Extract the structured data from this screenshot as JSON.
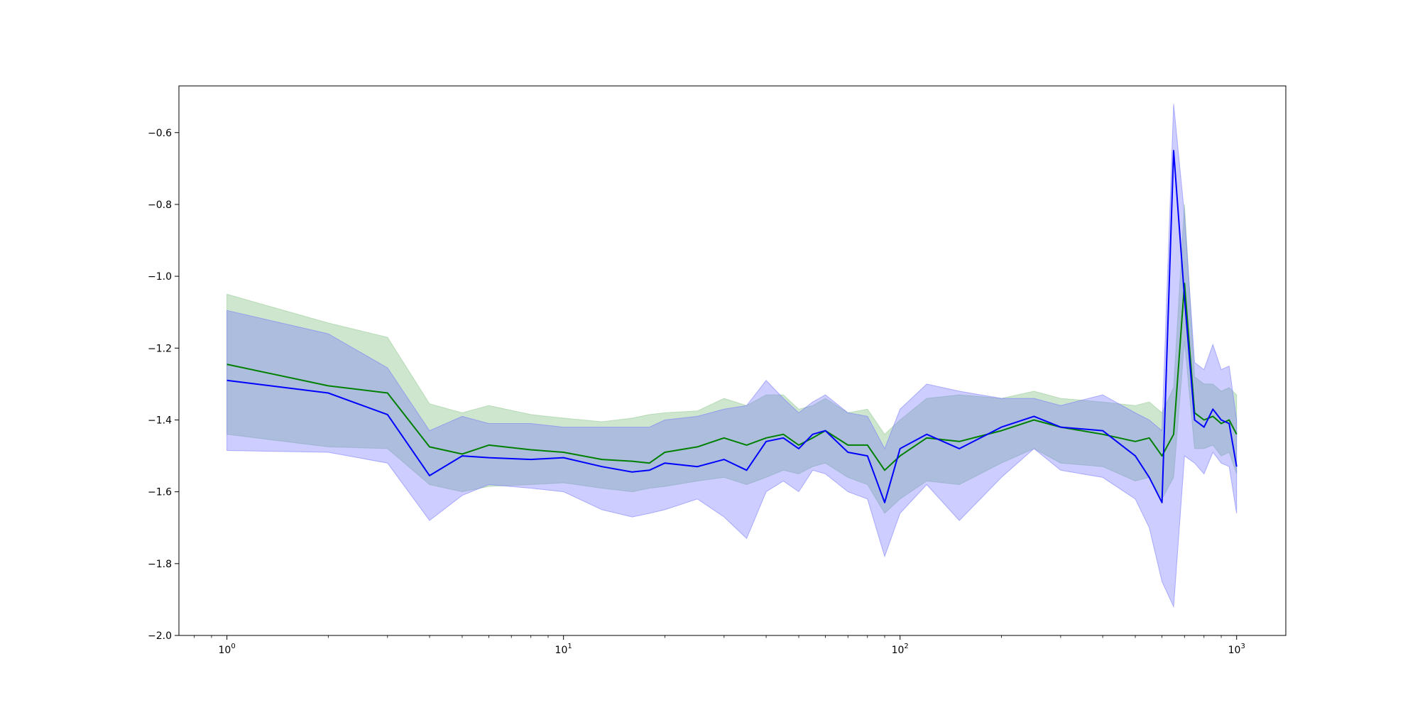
{
  "chart_data": {
    "type": "line",
    "x_scale": "log",
    "xlim": [
      0.72,
      1400
    ],
    "ylim": [
      -2.0,
      -0.47
    ],
    "x_ticks": [
      {
        "value": 1,
        "base": "10",
        "exp": "0"
      },
      {
        "value": 10,
        "base": "10",
        "exp": "1"
      },
      {
        "value": 100,
        "base": "10",
        "exp": "2"
      },
      {
        "value": 1000,
        "base": "10",
        "exp": "3"
      }
    ],
    "y_ticks": [
      {
        "value": -0.6,
        "label": "−0.6"
      },
      {
        "value": -0.8,
        "label": "−0.8"
      },
      {
        "value": -1.0,
        "label": "−1.0"
      },
      {
        "value": -1.2,
        "label": "−1.2"
      },
      {
        "value": -1.4,
        "label": "−1.4"
      },
      {
        "value": -1.6,
        "label": "−1.6"
      },
      {
        "value": -1.8,
        "label": "−1.8"
      },
      {
        "value": -2.0,
        "label": "−2.0"
      }
    ],
    "grid": false,
    "x": [
      1,
      2,
      3,
      4,
      5,
      6,
      8,
      10,
      13,
      16,
      18,
      20,
      25,
      30,
      35,
      40,
      45,
      50,
      55,
      60,
      70,
      80,
      90,
      100,
      120,
      150,
      200,
      250,
      300,
      400,
      500,
      550,
      600,
      650,
      700,
      750,
      800,
      850,
      900,
      950,
      1000
    ],
    "series": [
      {
        "color": "#008000",
        "band_color": "#90c890",
        "band_opacity": 0.45,
        "values": [
          -1.245,
          -1.305,
          -1.325,
          -1.475,
          -1.495,
          -1.47,
          -1.483,
          -1.49,
          -1.51,
          -1.515,
          -1.52,
          -1.49,
          -1.475,
          -1.45,
          -1.47,
          -1.45,
          -1.44,
          -1.47,
          -1.45,
          -1.43,
          -1.47,
          -1.47,
          -1.54,
          -1.5,
          -1.45,
          -1.46,
          -1.43,
          -1.4,
          -1.42,
          -1.44,
          -1.46,
          -1.45,
          -1.5,
          -1.44,
          -1.02,
          -1.38,
          -1.4,
          -1.39,
          -1.41,
          -1.4,
          -1.44
        ],
        "lower": [
          -1.44,
          -1.475,
          -1.48,
          -1.58,
          -1.6,
          -1.585,
          -1.58,
          -1.575,
          -1.59,
          -1.6,
          -1.59,
          -1.585,
          -1.57,
          -1.56,
          -1.58,
          -1.56,
          -1.54,
          -1.55,
          -1.53,
          -1.52,
          -1.56,
          -1.58,
          -1.66,
          -1.62,
          -1.57,
          -1.58,
          -1.52,
          -1.48,
          -1.52,
          -1.53,
          -1.57,
          -1.56,
          -1.62,
          -1.56,
          -1.18,
          -1.48,
          -1.48,
          -1.47,
          -1.5,
          -1.49,
          -1.55
        ],
        "upper": [
          -1.05,
          -1.13,
          -1.17,
          -1.355,
          -1.38,
          -1.36,
          -1.385,
          -1.395,
          -1.405,
          -1.395,
          -1.385,
          -1.38,
          -1.375,
          -1.34,
          -1.36,
          -1.33,
          -1.33,
          -1.37,
          -1.36,
          -1.34,
          -1.38,
          -1.37,
          -1.44,
          -1.4,
          -1.34,
          -1.33,
          -1.34,
          -1.32,
          -1.34,
          -1.35,
          -1.36,
          -1.35,
          -1.38,
          -1.31,
          -0.8,
          -1.28,
          -1.3,
          -1.3,
          -1.32,
          -1.31,
          -1.33
        ]
      },
      {
        "color": "#0000ff",
        "band_color": "#7070ff",
        "band_opacity": 0.35,
        "values": [
          -1.29,
          -1.325,
          -1.385,
          -1.555,
          -1.5,
          -1.505,
          -1.51,
          -1.505,
          -1.53,
          -1.545,
          -1.54,
          -1.52,
          -1.53,
          -1.51,
          -1.54,
          -1.46,
          -1.45,
          -1.48,
          -1.44,
          -1.43,
          -1.49,
          -1.5,
          -1.63,
          -1.48,
          -1.44,
          -1.48,
          -1.42,
          -1.39,
          -1.42,
          -1.43,
          -1.5,
          -1.56,
          -1.63,
          -0.65,
          -1.06,
          -1.4,
          -1.42,
          -1.37,
          -1.4,
          -1.41,
          -1.53
        ],
        "lower": [
          -1.485,
          -1.49,
          -1.52,
          -1.68,
          -1.61,
          -1.58,
          -1.59,
          -1.6,
          -1.65,
          -1.67,
          -1.66,
          -1.65,
          -1.62,
          -1.67,
          -1.73,
          -1.6,
          -1.57,
          -1.6,
          -1.54,
          -1.55,
          -1.6,
          -1.62,
          -1.78,
          -1.66,
          -1.58,
          -1.68,
          -1.56,
          -1.48,
          -1.54,
          -1.56,
          -1.62,
          -1.7,
          -1.85,
          -1.92,
          -1.5,
          -1.52,
          -1.55,
          -1.49,
          -1.52,
          -1.53,
          -1.66
        ],
        "upper": [
          -1.095,
          -1.16,
          -1.255,
          -1.43,
          -1.39,
          -1.41,
          -1.41,
          -1.42,
          -1.42,
          -1.42,
          -1.42,
          -1.4,
          -1.39,
          -1.37,
          -1.36,
          -1.29,
          -1.34,
          -1.38,
          -1.35,
          -1.33,
          -1.38,
          -1.39,
          -1.48,
          -1.37,
          -1.3,
          -1.32,
          -1.34,
          -1.34,
          -1.36,
          -1.33,
          -1.38,
          -1.4,
          -1.43,
          -0.52,
          -0.83,
          -1.24,
          -1.26,
          -1.19,
          -1.26,
          -1.25,
          -1.4
        ]
      }
    ]
  }
}
